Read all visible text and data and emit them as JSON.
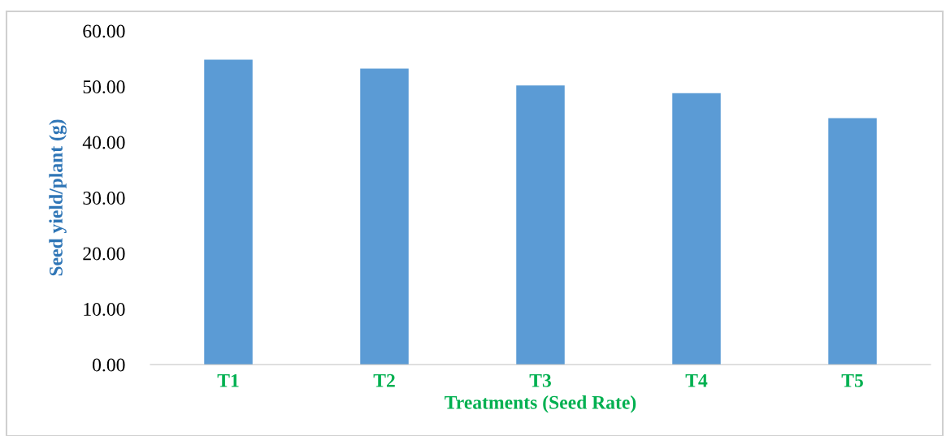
{
  "chart_data": {
    "type": "bar",
    "xlabel": "Treatments (Seed Rate)",
    "ylabel": "Seed yield/plant (g)",
    "categories": [
      "T1",
      "T2",
      "T3",
      "T4",
      "T5"
    ],
    "values": [
      54.8,
      53.2,
      50.2,
      48.8,
      44.3
    ],
    "color": "#5b9bd5",
    "ylim": [
      0,
      60
    ],
    "yticks": [
      {
        "value": 0,
        "label": "0.00"
      },
      {
        "value": 10,
        "label": "10.00"
      },
      {
        "value": 20,
        "label": "20.00"
      },
      {
        "value": 30,
        "label": "30.00"
      },
      {
        "value": 40,
        "label": "40.00"
      },
      {
        "value": 50,
        "label": "50.00"
      },
      {
        "value": 60,
        "label": "60.00"
      }
    ],
    "grid": false
  }
}
